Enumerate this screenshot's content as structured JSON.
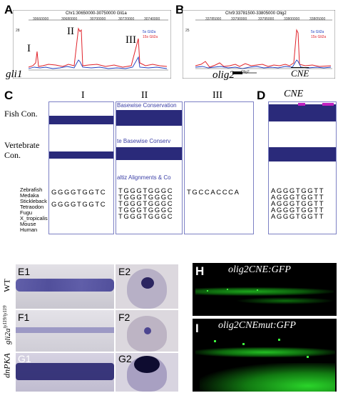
{
  "panels": {
    "A": {
      "letter": "A",
      "header": "Chr1:30650000-30750000 Gli1a",
      "ticks": [
        "30660000",
        "30680000",
        "30700000",
        "30720000",
        "30740000"
      ],
      "legend": [
        "5s Gli2a",
        "15s Gli2a"
      ],
      "peak_labels": [
        "I",
        "II",
        "III"
      ],
      "gene": "gli1",
      "ymax": "28"
    },
    "B": {
      "letter": "B",
      "header": "Chr9:33781500-33805000 Olig2",
      "ticks": [
        "33785000",
        "33790000",
        "33795000",
        "33800000",
        "33805000"
      ],
      "legend": [
        "5s Gli2a",
        "15s Gli2a"
      ],
      "gene": "olig2",
      "cne": "CNE",
      "ymax": "25",
      "gene_track_label": "Olig2"
    },
    "C": {
      "letter": "C",
      "track_labels": [
        "Fish Con.",
        "Vertebrate Con."
      ],
      "column_labels": [
        "I",
        "II",
        "III"
      ],
      "col2_header1": "Basewise Conservation",
      "col2_header2": "te Basewise Conserv",
      "col2_header3": "altiz Alignments & Co",
      "species": [
        "Zebrafish",
        "Medaka",
        "Stickleback",
        "Tetraodon",
        "Fugu",
        "X_tropicalis",
        "Mouse",
        "Human"
      ],
      "seq_I": [
        "GGGGTGGTC",
        "GGGGTGGTC"
      ],
      "seq_II": [
        "TGGGTGGGC",
        "TGGGTGGGC",
        "TGGGTGGGC",
        "TGGGTGGGC",
        "TGGGTGGGC"
      ],
      "seq_III": [
        "TGCCACCCA"
      ]
    },
    "D": {
      "letter": "D",
      "title": "CNE",
      "seqs": [
        "AGGGTGGTT",
        "AGGGTGGTT",
        "AGGGTGGTT",
        "AGGGTGGTT",
        "AGGGTGGTT"
      ]
    },
    "E": {
      "row_label": "WT",
      "sub": [
        "E1",
        "E2"
      ]
    },
    "F": {
      "row_label": "gli2a",
      "row_label_sup": "ty119/ty119",
      "sub": [
        "F1",
        "F2"
      ]
    },
    "G": {
      "row_label": "dnPKA",
      "sub": [
        "G1",
        "G2"
      ]
    },
    "H": {
      "letter": "H",
      "title": "olig2CNE:GFP"
    },
    "I": {
      "letter": "I",
      "title": "olig2CNEmut:GFP"
    }
  },
  "colors": {
    "conservation_track": "#2a2a7a",
    "series_5s": "#1f3fbf",
    "series_15s": "#e0222a",
    "gfp": "#2bd12b"
  }
}
